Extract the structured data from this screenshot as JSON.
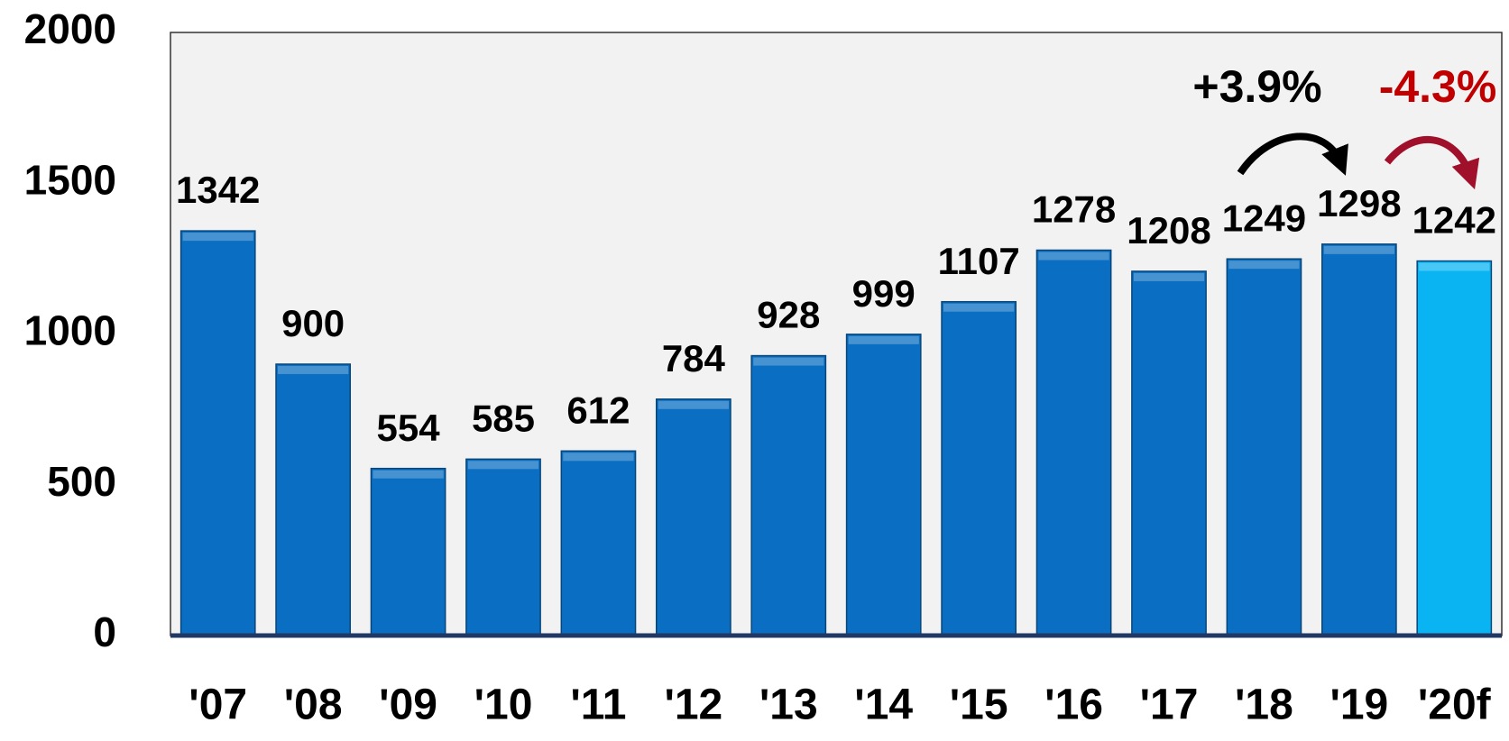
{
  "chart_data": {
    "type": "bar",
    "categories": [
      "'07",
      "'08",
      "'09",
      "'10",
      "'11",
      "'12",
      "'13",
      "'14",
      "'15",
      "'16",
      "'17",
      "'18",
      "'19",
      "'20f"
    ],
    "values": [
      1342,
      900,
      554,
      585,
      612,
      784,
      928,
      999,
      1107,
      1278,
      1208,
      1249,
      1298,
      1242
    ],
    "colors": [
      "#0a6fc2",
      "#0a6fc2",
      "#0a6fc2",
      "#0a6fc2",
      "#0a6fc2",
      "#0a6fc2",
      "#0a6fc2",
      "#0a6fc2",
      "#0a6fc2",
      "#0a6fc2",
      "#0a6fc2",
      "#0a6fc2",
      "#0a6fc2",
      "#0ab4f2"
    ],
    "ylim": [
      0,
      2000
    ],
    "yticks": [
      0,
      500,
      1000,
      1500,
      2000
    ],
    "grid": false,
    "annotations": [
      {
        "text": "+3.9%",
        "color": "#000000"
      },
      {
        "text": "-4.3%",
        "color": "#c00000"
      }
    ]
  }
}
